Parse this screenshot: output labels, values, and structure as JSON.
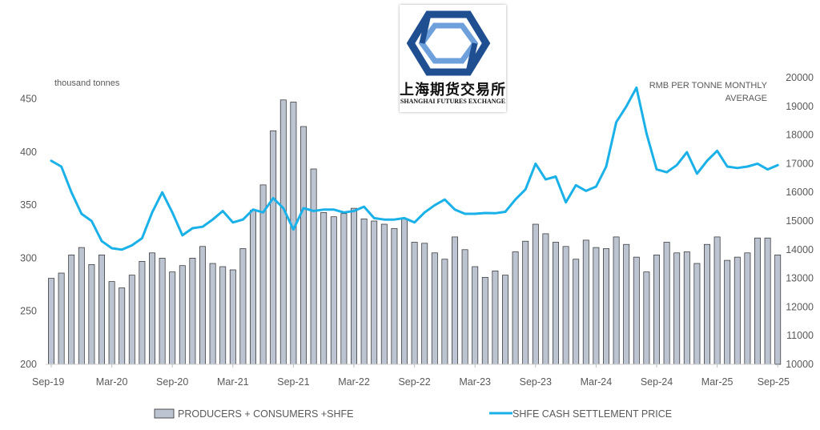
{
  "logo": {
    "name_cn": "上海期货交易所",
    "name_en": "SHANGHAI FUTURES EXCHANGE",
    "colors": {
      "dark": "#1f4e91",
      "light": "#6ea0dc"
    }
  },
  "chart_data": {
    "type": "bar+line",
    "left_axis": {
      "unit_label": "thousand tonnes",
      "ylim": [
        200,
        470
      ],
      "ticks": [
        "200",
        "250",
        "300",
        "350",
        "400",
        "450"
      ]
    },
    "right_axis": {
      "unit_label_lines": [
        "RMB PER TONNE MONTHLY",
        "AVERAGE"
      ],
      "ylim": [
        10000,
        20000
      ],
      "ticks": [
        "10000",
        "11000",
        "12000",
        "13000",
        "14000",
        "15000",
        "16000",
        "17000",
        "18000",
        "19000",
        "20000"
      ]
    },
    "x_tick_labels": [
      "Sep-19",
      "Mar-20",
      "Sep-20",
      "Mar-21",
      "Sep-21",
      "Mar-22",
      "Sep-22",
      "Mar-23",
      "Sep-23",
      "Mar-24",
      "Sep-24",
      "Mar-25",
      "Sep-25"
    ],
    "x_tick_every": 6,
    "categories": [
      "Sep-19",
      "Oct-19",
      "Nov-19",
      "Dec-19",
      "Jan-20",
      "Feb-20",
      "Mar-20",
      "Apr-20",
      "May-20",
      "Jun-20",
      "Jul-20",
      "Aug-20",
      "Sep-20",
      "Oct-20",
      "Nov-20",
      "Dec-20",
      "Jan-21",
      "Feb-21",
      "Mar-21",
      "Apr-21",
      "May-21",
      "Jun-21",
      "Jul-21",
      "Aug-21",
      "Sep-21",
      "Oct-21",
      "Nov-21",
      "Dec-21",
      "Jan-22",
      "Feb-22",
      "Mar-22",
      "Apr-22",
      "May-22",
      "Jun-22",
      "Jul-22",
      "Aug-22",
      "Sep-22",
      "Oct-22",
      "Nov-22",
      "Dec-22",
      "Jan-23",
      "Feb-23",
      "Mar-23",
      "Apr-23",
      "May-23",
      "Jun-23",
      "Jul-23",
      "Aug-23",
      "Sep-23",
      "Oct-23",
      "Nov-23",
      "Dec-23",
      "Jan-24",
      "Feb-24",
      "Mar-24",
      "Apr-24",
      "May-24",
      "Jun-24",
      "Jul-24",
      "Aug-24",
      "Sep-24",
      "Oct-24",
      "Nov-24",
      "Dec-24",
      "Jan-25",
      "Feb-25",
      "Mar-25",
      "Apr-25",
      "May-25",
      "Jun-25",
      "Jul-25",
      "Aug-25",
      "Sep-25"
    ],
    "series": [
      {
        "name": "PRODUCERS + CONSUMERS +SHFE",
        "type": "bar",
        "axis": "left",
        "color": "#bcc3d1",
        "values": [
          281,
          286,
          303,
          310,
          294,
          303,
          278,
          272,
          284,
          297,
          305,
          300,
          287,
          293,
          300,
          311,
          295,
          292,
          289,
          309,
          345,
          369,
          420,
          449,
          447,
          424,
          384,
          343,
          339,
          342,
          347,
          337,
          335,
          332,
          328,
          337,
          315,
          314,
          305,
          299,
          320,
          308,
          292,
          282,
          288,
          284,
          306,
          316,
          332,
          323,
          315,
          311,
          299,
          317,
          310,
          309,
          320,
          313,
          301,
          287,
          303,
          315,
          305,
          306,
          295,
          313,
          320,
          298,
          301,
          305,
          319,
          319,
          303
        ]
      },
      {
        "name": "SHFE CASH SETTLEMENT PRICE",
        "type": "line",
        "axis": "right",
        "color": "#1ab0e8",
        "values": [
          17100,
          16900,
          16000,
          15250,
          15000,
          14300,
          14050,
          14000,
          14150,
          14400,
          15300,
          16000,
          15300,
          14500,
          14750,
          14800,
          15050,
          15350,
          14950,
          15050,
          15400,
          15300,
          15800,
          15450,
          14700,
          15450,
          15350,
          15400,
          15400,
          15300,
          15350,
          15500,
          15100,
          15050,
          15050,
          15100,
          14950,
          15300,
          15550,
          15750,
          15400,
          15250,
          15250,
          15280,
          15270,
          15320,
          15750,
          16100,
          17000,
          16450,
          16550,
          15650,
          16250,
          16050,
          16200,
          16900,
          18450,
          19000,
          19650,
          18050,
          16800,
          16700,
          16950,
          17400,
          16650,
          17100,
          17450,
          16900,
          16850,
          16900,
          17000,
          16800,
          16950
        ]
      }
    ],
    "grid": false,
    "legend_position": "bottom"
  }
}
